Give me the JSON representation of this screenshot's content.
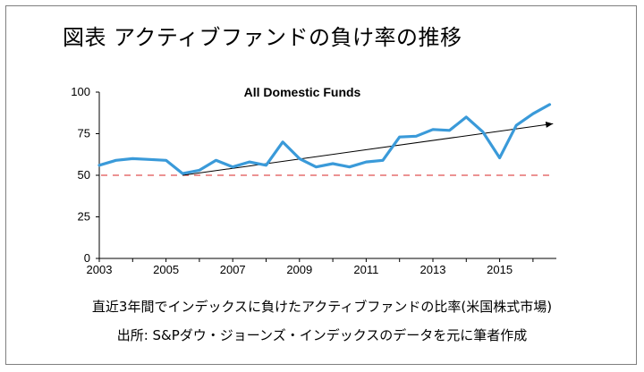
{
  "title": "図表 アクティブファンドの負け率の推移",
  "caption_line1": "直近3年間でインデックスに負けたアクティブファンドの比率(米国株式市場)",
  "caption_line2": "出所: S&Pダウ・ジョーンズ・インデックスのデータを元に筆者作成",
  "colors": {
    "line": "#3a9ad9",
    "reference": "#e05050",
    "trend": "#000000",
    "axis": "#000000"
  },
  "chart_data": {
    "type": "line",
    "title": "All Domestic Funds",
    "xlabel": "",
    "ylabel": "",
    "xlim": [
      2003,
      2016.7
    ],
    "ylim": [
      0,
      100
    ],
    "x_ticks": [
      2003,
      2005,
      2007,
      2009,
      2011,
      2013,
      2015
    ],
    "y_ticks": [
      0,
      25,
      50,
      75,
      100
    ],
    "grid": false,
    "series": [
      {
        "x": [
          2003,
          2003.5,
          2004,
          2004.5,
          2005,
          2005.5,
          2006,
          2006.5,
          2007,
          2007.5,
          2008,
          2008.5,
          2009,
          2009.5,
          2010,
          2010.5,
          2011,
          2011.5,
          2012,
          2012.5,
          2013,
          2013.5,
          2014,
          2014.5,
          2015,
          2015.5,
          2016,
          2016.5
        ],
        "values": [
          56,
          59,
          60,
          59.5,
          59,
          51,
          53,
          59,
          55,
          58,
          56,
          70,
          60,
          55,
          57,
          55,
          58,
          59,
          73,
          73.5,
          77.5,
          77,
          85,
          76,
          60.5,
          80,
          87,
          92.5
        ]
      }
    ],
    "reference_line": {
      "y": 50,
      "style": "dashed"
    },
    "trend_arrow": {
      "from": [
        2005.5,
        50
      ],
      "to": [
        2016.6,
        81
      ]
    }
  }
}
